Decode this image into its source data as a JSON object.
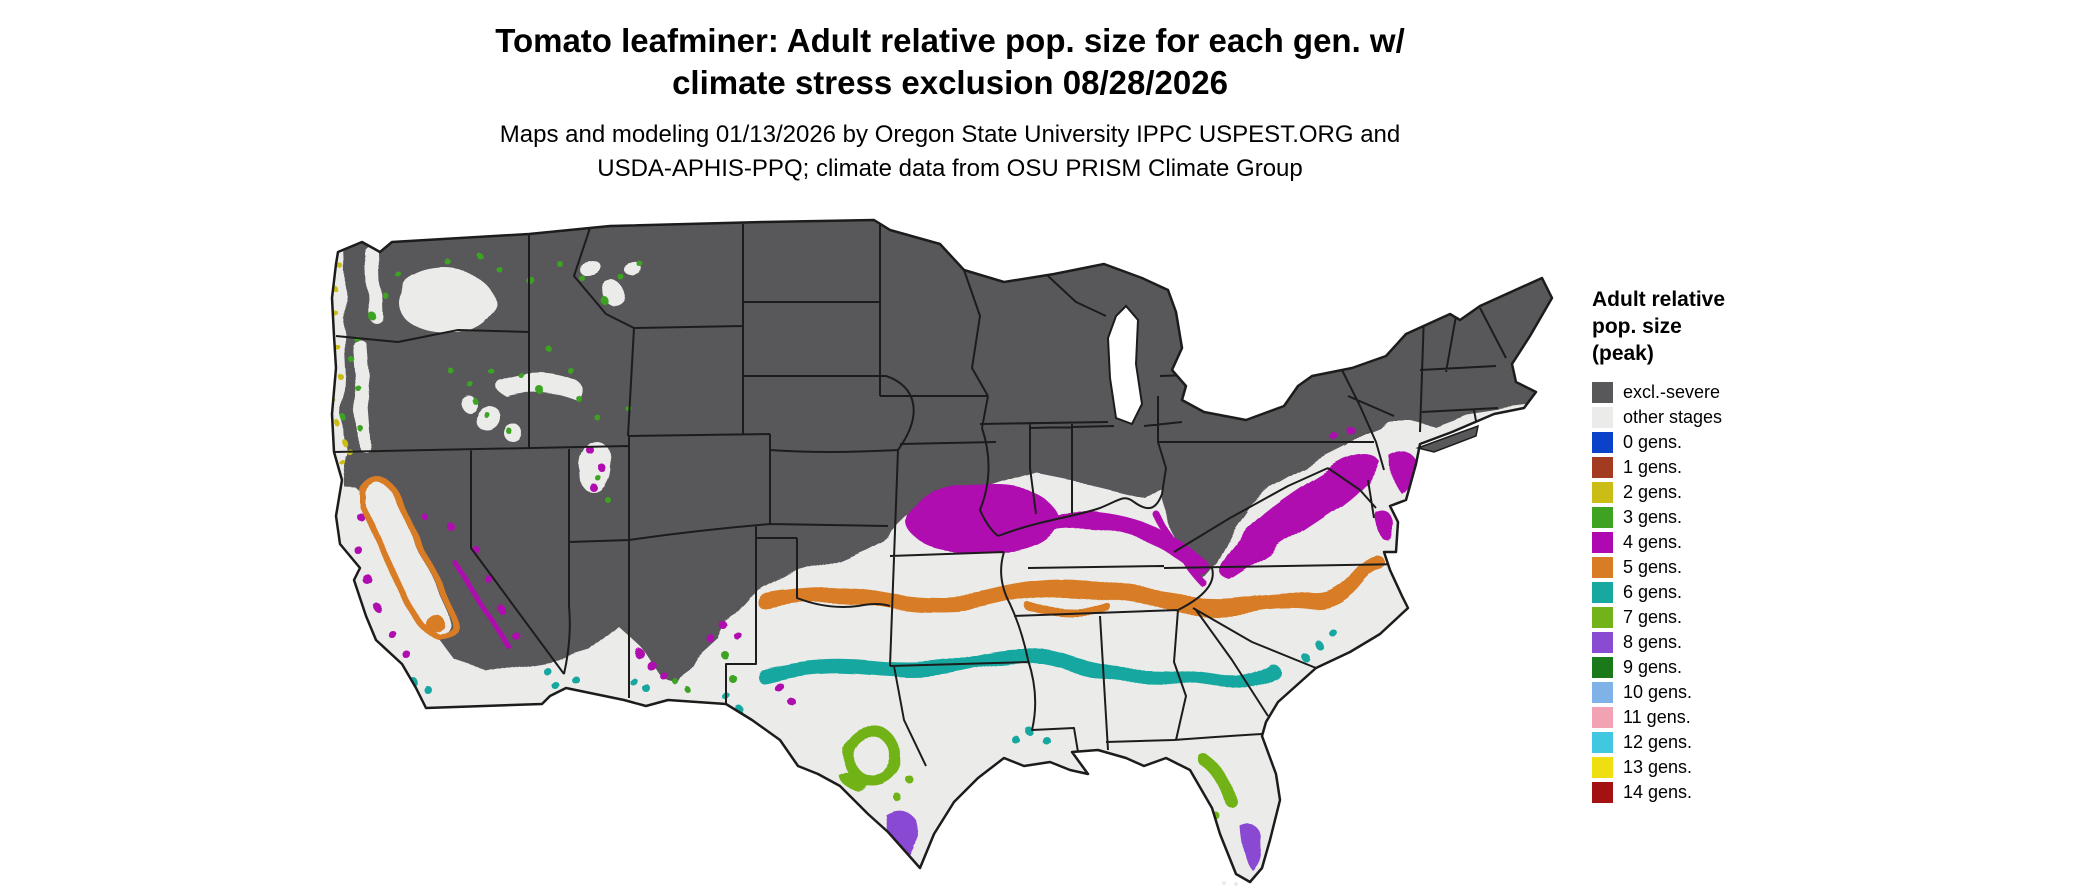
{
  "title": {
    "line1": "Tomato leafminer: Adult relative pop. size for each gen. w/",
    "line2": "climate stress exclusion 08/28/2026"
  },
  "subtitle": {
    "line1": "Maps and modeling 01/13/2026 by Oregon State University IPPC USPEST.ORG and",
    "line2": "USDA-APHIS-PPQ; climate data from OSU PRISM Climate Group"
  },
  "legend": {
    "title": [
      "Adult relative",
      "pop. size",
      "(peak)"
    ],
    "entries": [
      {
        "label": "excl.-severe",
        "color": "#58585a"
      },
      {
        "label": "other stages",
        "color": "#ebebe9"
      },
      {
        "label": "0 gens.",
        "color": "#0a43c9"
      },
      {
        "label": "1 gens.",
        "color": "#a23b20"
      },
      {
        "label": "2 gens.",
        "color": "#cbbd16"
      },
      {
        "label": "3 gens.",
        "color": "#3da321"
      },
      {
        "label": "4 gens.",
        "color": "#b008b0"
      },
      {
        "label": "5 gens.",
        "color": "#d87d25"
      },
      {
        "label": "6 gens.",
        "color": "#17a8a0"
      },
      {
        "label": "7 gens.",
        "color": "#71b319"
      },
      {
        "label": "8 gens.",
        "color": "#8a4ad2"
      },
      {
        "label": "9 gens.",
        "color": "#1a7a1a"
      },
      {
        "label": "10 gens.",
        "color": "#7fb3e8"
      },
      {
        "label": "11 gens.",
        "color": "#f2a3b3"
      },
      {
        "label": "12 gens.",
        "color": "#41c7e0"
      },
      {
        "label": "13 gens.",
        "color": "#f0df10"
      },
      {
        "label": "14 gens.",
        "color": "#a31111"
      }
    ]
  },
  "map": {
    "region": "Continental United States",
    "date_shown": "08/28/2026",
    "palette": {
      "excl_severe": "#58585a",
      "other": "#ebebe9",
      "gen2": "#cbbd16",
      "gen3": "#3da321",
      "gen4": "#b008b0",
      "gen5": "#d87d25",
      "gen6": "#17a8a0",
      "gen7": "#71b319",
      "gen8": "#8a4ad2",
      "border": "#1c1c1c",
      "water": "#ffffff"
    }
  }
}
